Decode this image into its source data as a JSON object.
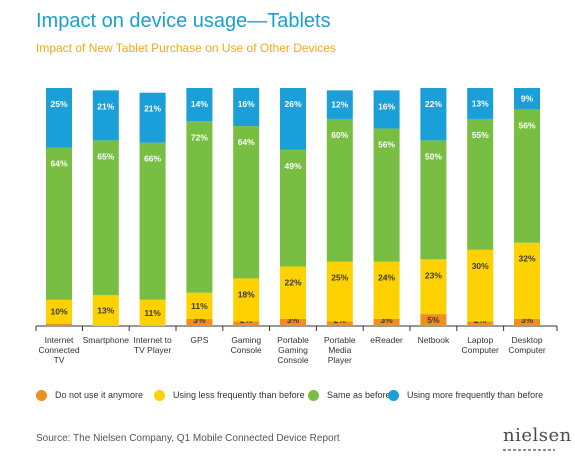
{
  "title": "Impact on device usage—Tablets",
  "subtitle": "Impact of New Tablet Purchase on Use of Other Devices",
  "source": "Source: The Nielsen Company, Q1 Mobile Connected Device Report",
  "logo_text": "nielsen",
  "colors": {
    "not_use": "#ef8f1e",
    "less": "#fed100",
    "same": "#78be43",
    "more": "#1a9fd9",
    "axis": "#333333"
  },
  "chart_data": {
    "type": "bar",
    "stacked": true,
    "title": "Impact on device usage—Tablets",
    "subtitle": "Impact of New Tablet Purchase on Use of Other Devices",
    "categories": [
      [
        "Internet",
        "Connected",
        "TV"
      ],
      [
        "Smartphone"
      ],
      [
        "Internet to",
        "TV Player"
      ],
      [
        "GPS"
      ],
      [
        "Gaming",
        "Console"
      ],
      [
        "Portable",
        "Gaming",
        "Console"
      ],
      [
        "Portable",
        "Media",
        "Player"
      ],
      [
        "eReader"
      ],
      [
        "Netbook"
      ],
      [
        "Laptop",
        "Computer"
      ],
      [
        "Desktop",
        "Computer"
      ]
    ],
    "ylim": [
      0,
      100
    ],
    "grid": false,
    "legend_position": "bottom",
    "series": [
      {
        "name": "Do not use it anymore",
        "color": "#ef8f1e",
        "values": [
          1,
          0,
          0.02,
          3,
          2,
          3,
          2,
          3,
          5,
          2,
          3
        ],
        "labels": [
          "1%",
          "",
          "0.02%",
          "3%",
          "2%",
          "3%",
          "2%",
          "3%",
          "5%",
          "2%",
          "3%"
        ]
      },
      {
        "name": "Using less frequently than before",
        "color": "#fed100",
        "values": [
          10,
          13,
          11,
          11,
          18,
          22,
          25,
          24,
          23,
          30,
          32
        ],
        "labels": [
          "10%",
          "13%",
          "11%",
          "11%",
          "18%",
          "22%",
          "25%",
          "24%",
          "23%",
          "30%",
          "32%"
        ]
      },
      {
        "name": "Same as before",
        "color": "#78be43",
        "values": [
          64,
          65,
          66,
          72,
          64,
          49,
          60,
          56,
          50,
          55,
          56
        ],
        "labels": [
          "64%",
          "65%",
          "66%",
          "72%",
          "64%",
          "49%",
          "60%",
          "56%",
          "50%",
          "55%",
          "56%"
        ]
      },
      {
        "name": "Using more frequently than before",
        "color": "#1a9fd9",
        "values": [
          25,
          21,
          21,
          14,
          16,
          26,
          12,
          16,
          22,
          13,
          9
        ],
        "labels": [
          "25%",
          "21%",
          "21%",
          "14%",
          "16%",
          "26%",
          "12%",
          "16%",
          "22%",
          "13%",
          "9%"
        ]
      }
    ]
  }
}
